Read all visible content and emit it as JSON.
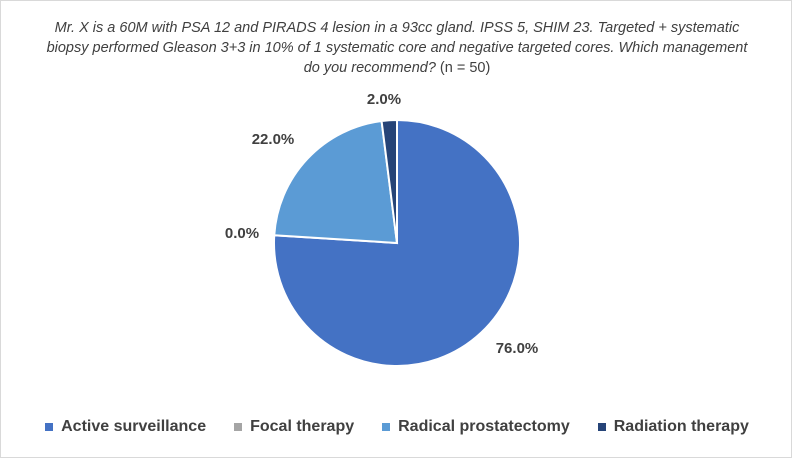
{
  "chart_data": {
    "type": "pie",
    "title": "Mr. X is a 60M with PSA 12 and PIRADS 4 lesion in a 93cc gland. IPSS 5, SHIM 23. Targeted + systematic biopsy performed Gleason 3+3 in 10% of 1 systematic core and negative targeted cores. Which management do you recommend?",
    "title_suffix": "(n = 50)",
    "categories": [
      "Active surveillance",
      "Focal therapy",
      "Radical prostatectomy",
      "Radiation therapy"
    ],
    "values": [
      76.0,
      0.0,
      22.0,
      2.0
    ],
    "labels": [
      "76.0%",
      "0.0%",
      "22.0%",
      "2.0%"
    ],
    "colors": [
      "#4472c4",
      "#a5a5a5",
      "#5b9bd5",
      "#264478"
    ],
    "start_angle_deg": 0,
    "direction": "clockwise",
    "legend_position": "bottom"
  }
}
